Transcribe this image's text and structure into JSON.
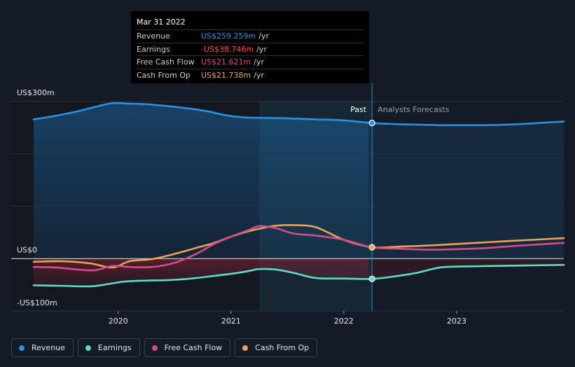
{
  "chart_data": {
    "type": "line",
    "y_unit_labels": [
      "US$300m",
      "US$0",
      "-US$100m"
    ],
    "ylim": [
      -100,
      300
    ],
    "xlim": [
      2019.25,
      2023.95
    ],
    "x_ticks": [
      {
        "value": 2020,
        "label": "2020"
      },
      {
        "value": 2021,
        "label": "2021"
      },
      {
        "value": 2022,
        "label": "2022"
      },
      {
        "value": 2023,
        "label": "2023"
      }
    ],
    "divider_x": 2022.25,
    "highlight_start_x": 2021.25,
    "past_label": "Past",
    "forecast_label": "Analysts Forecasts",
    "series": [
      {
        "key": "revenue",
        "name": "Revenue",
        "color": "#2d8fe0",
        "fill": true,
        "x": [
          2019.25,
          2019.45,
          2019.65,
          2019.8,
          2019.95,
          2020.1,
          2020.25,
          2020.45,
          2020.65,
          2020.8,
          2020.95,
          2021.1,
          2021.25,
          2021.5,
          2021.75,
          2022.0,
          2022.25,
          2022.45,
          2022.65,
          2022.85,
          2023.05,
          2023.25,
          2023.45,
          2023.65,
          2023.95
        ],
        "values": [
          266,
          273,
          282,
          290,
          297,
          296,
          295,
          291,
          286,
          281,
          274,
          270,
          269,
          268,
          266,
          264,
          259,
          257,
          256,
          255,
          255,
          255,
          256,
          258,
          262
        ]
      },
      {
        "key": "earnings",
        "name": "Earnings",
        "color": "#5fdbc9",
        "fill": false,
        "x": [
          2019.25,
          2019.5,
          2019.75,
          2019.9,
          2020.05,
          2020.25,
          2020.45,
          2020.65,
          2020.85,
          2021.0,
          2021.15,
          2021.25,
          2021.4,
          2021.55,
          2021.75,
          2022.0,
          2022.25,
          2022.45,
          2022.65,
          2022.85,
          2023.05,
          2023.35,
          2023.65,
          2023.95
        ],
        "values": [
          -51,
          -52,
          -53,
          -49,
          -44,
          -42,
          -41,
          -38,
          -33,
          -29,
          -24,
          -20,
          -21,
          -27,
          -37,
          -38,
          -38.7,
          -34,
          -27,
          -17,
          -15,
          -14,
          -13,
          -12
        ]
      },
      {
        "key": "fcf",
        "name": "Free Cash Flow",
        "color": "#d04e8a",
        "fill": false,
        "x": [
          2019.25,
          2019.45,
          2019.65,
          2019.8,
          2019.95,
          2020.1,
          2020.3,
          2020.5,
          2020.7,
          2020.85,
          2021.0,
          2021.15,
          2021.25,
          2021.4,
          2021.55,
          2021.75,
          2022.0,
          2022.25,
          2022.5,
          2022.75,
          2023.0,
          2023.25,
          2023.5,
          2023.95
        ],
        "values": [
          -16,
          -17,
          -21,
          -22,
          -14,
          -16,
          -16,
          -8,
          10,
          28,
          42,
          54,
          62,
          58,
          48,
          44,
          36,
          21.6,
          19,
          17,
          18,
          20,
          24,
          30
        ]
      },
      {
        "key": "cfo",
        "name": "Cash From Op",
        "color": "#e8a458",
        "fill": false,
        "x": [
          2019.25,
          2019.5,
          2019.75,
          2019.95,
          2020.1,
          2020.3,
          2020.5,
          2020.7,
          2020.85,
          2021.0,
          2021.15,
          2021.25,
          2021.4,
          2021.55,
          2021.75,
          2022.0,
          2022.25,
          2022.5,
          2022.75,
          2023.0,
          2023.25,
          2023.5,
          2023.95
        ],
        "values": [
          -6,
          -5,
          -9,
          -17,
          -5,
          -1,
          9,
          21,
          30,
          42,
          52,
          57,
          63,
          64,
          60,
          36,
          21.7,
          23,
          25,
          28,
          31,
          34,
          39
        ]
      }
    ]
  },
  "tooltip": {
    "title": "Mar 31 2022",
    "rows": [
      {
        "label": "Revenue",
        "value": "US$259.259m",
        "unit": "/yr",
        "color": "#2d8fe0"
      },
      {
        "label": "Earnings",
        "value": "-US$38.746m",
        "unit": "/yr",
        "color": "#ff4a4a"
      },
      {
        "label": "Free Cash Flow",
        "value": "US$21.621m",
        "unit": "/yr",
        "color": "#d04e8a"
      },
      {
        "label": "Cash From Op",
        "value": "US$21.738m",
        "unit": "/yr",
        "color": "#e8a458"
      }
    ]
  },
  "legend": [
    {
      "label": "Revenue",
      "color": "#2d8fe0"
    },
    {
      "label": "Earnings",
      "color": "#5fdbc9"
    },
    {
      "label": "Free Cash Flow",
      "color": "#d04e8a"
    },
    {
      "label": "Cash From Op",
      "color": "#e8a458"
    }
  ]
}
